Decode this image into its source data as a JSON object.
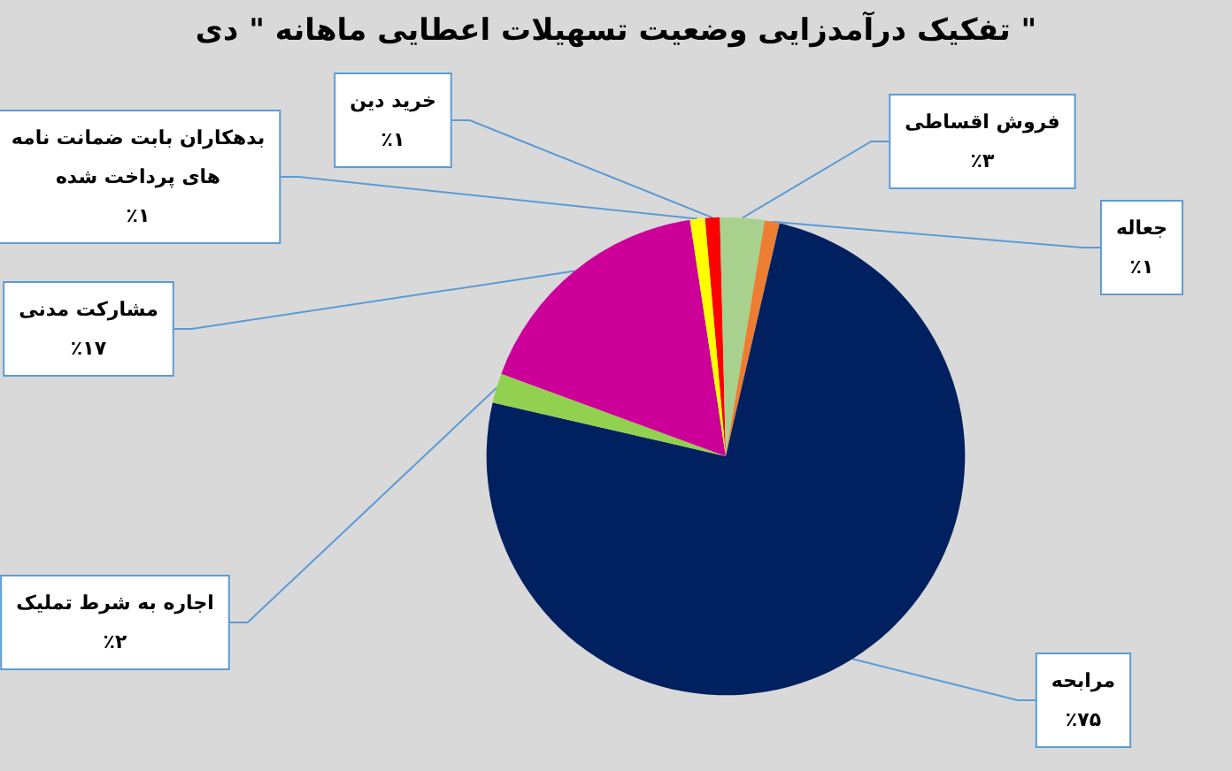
{
  "chart_data": {
    "type": "pie",
    "title": "تفکیک درآمدزایی وضعیت تسهیلات اعطایی ماهانه \" دی \"",
    "categories": [
      "خرید دین",
      "فروش اقساطی",
      "جعاله",
      "مرابحه",
      "اجاره به شرط تملیک",
      "مشارکت مدنی",
      "بدهکاران بابت ضمانت نامه های پرداخت شده"
    ],
    "values": [
      1,
      3,
      1,
      75,
      2,
      17,
      1
    ],
    "value_labels": [
      "٪۱",
      "٪۳",
      "٪۱",
      "٪۷۵",
      "٪۲",
      "٪۱۷",
      "٪۱"
    ],
    "colors": [
      "#ff0000",
      "#a9d18e",
      "#ed7d31",
      "#002060",
      "#92d050",
      "#cc0099",
      "#ffff00"
    ],
    "legend": false
  }
}
